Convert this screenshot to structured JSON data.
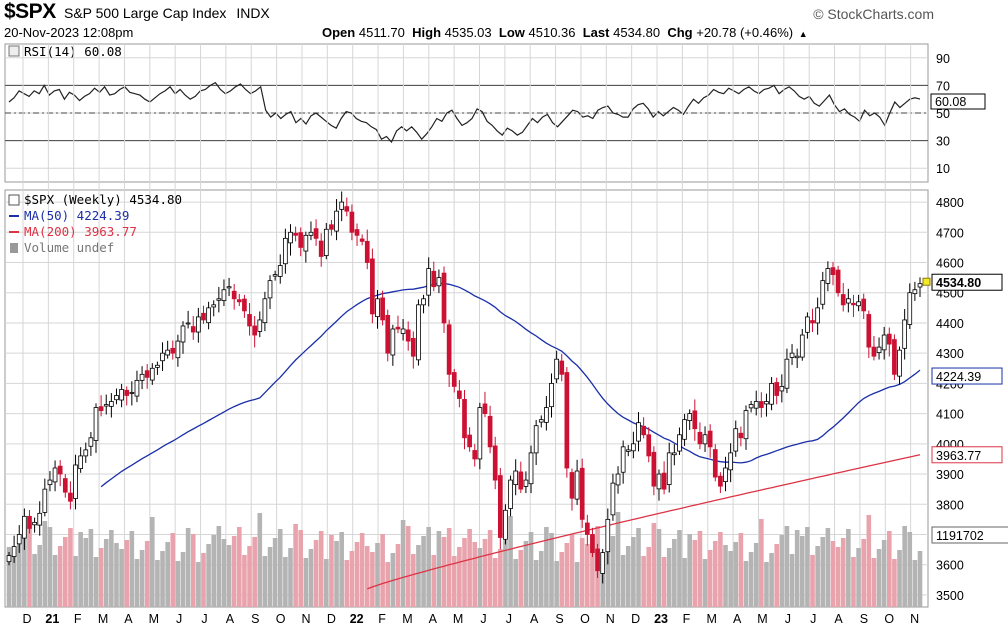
{
  "header": {
    "symbol": "$SPX",
    "name": "S&P 500 Large Cap Index",
    "exchange": "INDX",
    "datetime": "20-Nov-2023 12:08pm",
    "brand": "© StockCharts.com",
    "open_label": "Open",
    "open": "4511.70",
    "high_label": "High",
    "high": "4535.03",
    "low_label": "Low",
    "low": "4510.36",
    "last_label": "Last",
    "last": "4534.80",
    "chg_label": "Chg",
    "chg": "+20.78 (+0.46%)",
    "chg_arrow": "▲"
  },
  "colors": {
    "up": "#ffffff",
    "down": "#cc1133",
    "ma50": "#1a2fa8",
    "ma200": "#dd3344",
    "volume_up": "#b4b4b4",
    "volume_down": "#e9a3ad",
    "grid": "#d6d6d6"
  },
  "chart_data": [
    {
      "type": "line",
      "title": "RSI(14) 60.08",
      "legend": "RSI(14) 60.08",
      "y_ticks": [
        "90",
        "70",
        "50",
        "30",
        "10"
      ],
      "ylim": [
        0,
        100
      ],
      "reference_lines": [
        70,
        50,
        30
      ],
      "last_value_label": "60.08",
      "series": [
        {
          "name": "RSI(14)",
          "values": [
            58,
            61,
            66,
            64,
            62,
            66,
            64,
            70,
            63,
            66,
            67,
            60,
            65,
            63,
            59,
            62,
            64,
            68,
            65,
            69,
            63,
            64,
            67,
            69,
            65,
            64,
            63,
            60,
            58,
            61,
            64,
            66,
            69,
            64,
            67,
            63,
            60,
            62,
            66,
            67,
            70,
            72,
            67,
            64,
            66,
            69,
            71,
            67,
            64,
            66,
            69,
            52,
            47,
            50,
            46,
            49,
            51,
            43,
            46,
            42,
            48,
            50,
            47,
            44,
            41,
            39,
            46,
            51,
            50,
            46,
            44,
            43,
            40,
            38,
            31,
            33,
            29,
            37,
            40,
            37,
            40,
            36,
            31,
            35,
            40,
            46,
            44,
            50,
            52,
            46,
            41,
            43,
            46,
            53,
            51,
            44,
            41,
            37,
            34,
            39,
            37,
            34,
            36,
            41,
            46,
            43,
            47,
            49,
            43,
            40,
            44,
            48,
            52,
            51,
            47,
            48,
            46,
            52,
            54,
            55,
            50,
            49,
            47,
            47,
            53,
            56,
            57,
            53,
            47,
            51,
            48,
            51,
            54,
            52,
            49,
            55,
            60,
            57,
            61,
            63,
            67,
            65,
            64,
            68,
            66,
            64,
            67,
            69,
            66,
            64,
            67,
            68,
            70,
            64,
            67,
            69,
            66,
            62,
            60,
            62,
            57,
            55,
            59,
            63,
            56,
            51,
            53,
            49,
            47,
            44,
            52,
            48,
            50,
            47,
            41,
            50,
            58,
            54,
            57,
            60,
            61,
            60.08
          ]
        }
      ]
    },
    {
      "type": "candlestick",
      "title": "$SPX (Weekly) 4534.80",
      "legend": [
        {
          "name": "$SPX (Weekly) 4534.80",
          "color": "#000000"
        },
        {
          "name": "MA(50) 4224.39",
          "color": "#1a2fa8"
        },
        {
          "name": "MA(200) 3963.77",
          "color": "#dd3344"
        },
        {
          "name": "Volume undef",
          "color": "#777777"
        }
      ],
      "y_ticks": [
        "4800",
        "4700",
        "4600",
        "4500",
        "4400",
        "4300",
        "4200",
        "4100",
        "4000",
        "3900",
        "3800",
        "3700",
        "3600",
        "3500"
      ],
      "ylim": [
        3460,
        4840
      ],
      "x_ticks": [
        "D",
        "21",
        "F",
        "M",
        "A",
        "M",
        "J",
        "J",
        "A",
        "S",
        "O",
        "N",
        "D",
        "22",
        "F",
        "M",
        "A",
        "M",
        "J",
        "J",
        "A",
        "S",
        "O",
        "N",
        "D",
        "23",
        "F",
        "M",
        "A",
        "M",
        "J",
        "J",
        "A",
        "S",
        "O",
        "N"
      ],
      "bold_x_ticks": [
        "21",
        "22",
        "23"
      ],
      "price_labels": {
        "last": "4534.80",
        "ma50": "4224.39",
        "ma200": "3963.77",
        "volume": "1191702"
      },
      "close": [
        3630,
        3660,
        3700,
        3760,
        3720,
        3740,
        3770,
        3850,
        3880,
        3920,
        3900,
        3840,
        3810,
        3930,
        3960,
        3980,
        4020,
        4120,
        4110,
        4130,
        4140,
        4160,
        4180,
        4160,
        4170,
        4210,
        4230,
        4220,
        4250,
        4260,
        4300,
        4310,
        4300,
        4340,
        4390,
        4400,
        4370,
        4420,
        4410,
        4450,
        4460,
        4480,
        4510,
        4520,
        4480,
        4470,
        4440,
        4390,
        4360,
        4410,
        4480,
        4540,
        4560,
        4590,
        4680,
        4700,
        4690,
        4650,
        4690,
        4700,
        4680,
        4620,
        4710,
        4710,
        4770,
        4800,
        4770,
        4700,
        4690,
        4670,
        4600,
        4430,
        4480,
        4410,
        4300,
        4380,
        4380,
        4380,
        4340,
        4290,
        4460,
        4480,
        4580,
        4520,
        4550,
        4400,
        4230,
        4190,
        4150,
        4020,
        3990,
        3950,
        4120,
        4100,
        3990,
        3880,
        3690,
        3780,
        3880,
        3910,
        3850,
        3880,
        3970,
        4060,
        4080,
        4120,
        4200,
        4280,
        4230,
        3920,
        3820,
        3910,
        3750,
        3700,
        3640,
        3580,
        3640,
        3750,
        3870,
        3900,
        3990,
        3980,
        4000,
        4070,
        4030,
        3960,
        3860,
        3900,
        3850,
        3970,
        3970,
        4030,
        4080,
        4100,
        4050,
        4000,
        4030,
        3990,
        3890,
        3860,
        3920,
        3970,
        4050,
        4020,
        4110,
        4130,
        4140,
        4120,
        4140,
        4200,
        4160,
        4190,
        4280,
        4300,
        4290,
        4360,
        4420,
        4400,
        4450,
        4540,
        4580,
        4560,
        4500,
        4460,
        4480,
        4460,
        4470,
        4440,
        4320,
        4290,
        4320,
        4360,
        4330,
        4230,
        4310,
        4410,
        4500,
        4510,
        4530
      ],
      "x_range": [
        "2020-12",
        "2023-11"
      ],
      "series": [
        {
          "name": "MA(50)",
          "last": 4224.39
        },
        {
          "name": "MA(200)",
          "last": 3963.77
        }
      ]
    }
  ]
}
